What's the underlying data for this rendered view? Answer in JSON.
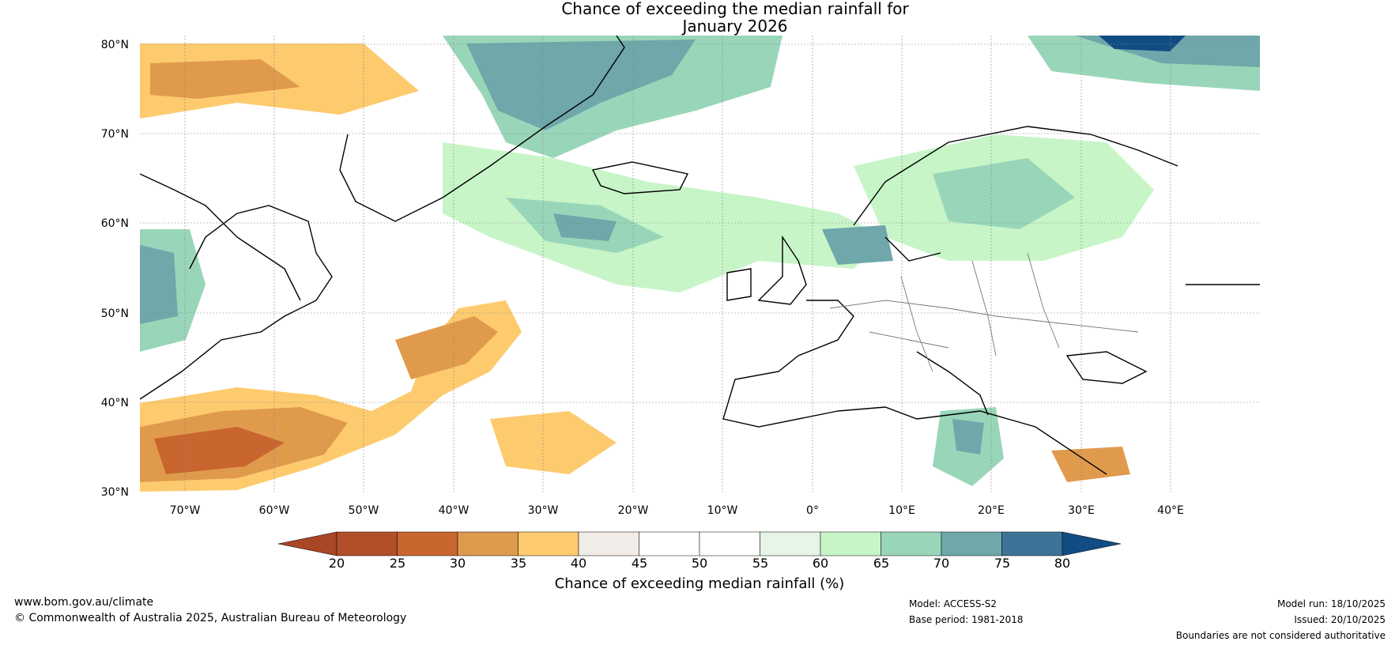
{
  "title": {
    "line1": "Chance of exceeding the median rainfall for",
    "line2": "January 2026"
  },
  "map": {
    "lat_labels": [
      "80°N",
      "70°N",
      "60°N",
      "50°N",
      "40°N",
      "30°N"
    ],
    "lon_labels": [
      "70°W",
      "60°W",
      "50°W",
      "40°W",
      "30°W",
      "20°W",
      "10°W",
      "0°",
      "10°E",
      "20°E",
      "30°E",
      "40°E"
    ],
    "lat_range": [
      30,
      81
    ],
    "lon_range": [
      -75,
      50
    ]
  },
  "colorbar": {
    "title": "Chance of exceeding median rainfall (%)",
    "ticks": [
      "20",
      "25",
      "30",
      "35",
      "40",
      "45",
      "50",
      "55",
      "60",
      "65",
      "70",
      "75",
      "80"
    ],
    "colors": [
      "#a94626",
      "#b24f29",
      "#c9652f",
      "#e09a4c",
      "#fdcb6e",
      "#f1ece7",
      "#ffffff",
      "#ffffff",
      "#e6f5e6",
      "#c7f5c8",
      "#99d6b9",
      "#6fa7aa",
      "#3e7397",
      "#114c84"
    ]
  },
  "footer": {
    "website": "www.bom.gov.au/climate",
    "copyright": "© Commonwealth of Australia 2025, Australian Bureau of Meteorology",
    "model": "Model: ACCESS-S2",
    "base_period": "Base period: 1981-2018",
    "model_run": "Model run: 18/10/2025",
    "issued": "Issued: 20/10/2025",
    "disclaimer": "Boundaries are not considered authoritative"
  }
}
